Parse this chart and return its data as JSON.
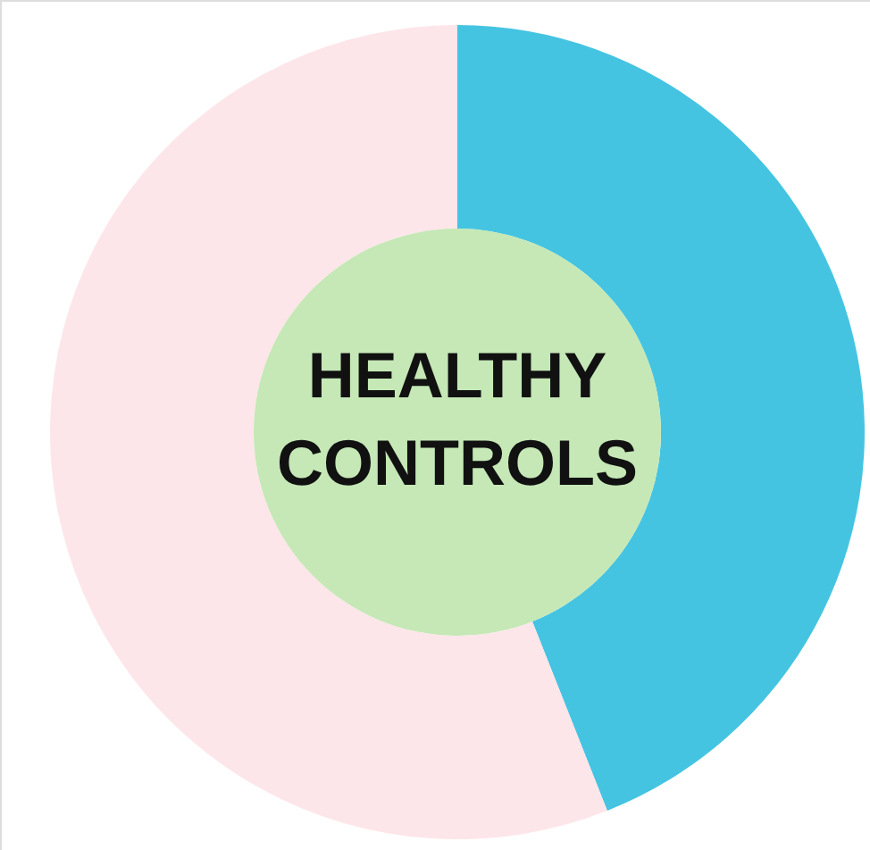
{
  "chart_data": {
    "type": "donut",
    "title": "HEALTHY CONTROLS",
    "categories": [
      null,
      null
    ],
    "values": [
      44,
      56
    ],
    "colors": [
      "#45c4e2",
      "#fde6e9"
    ]
  }
}
